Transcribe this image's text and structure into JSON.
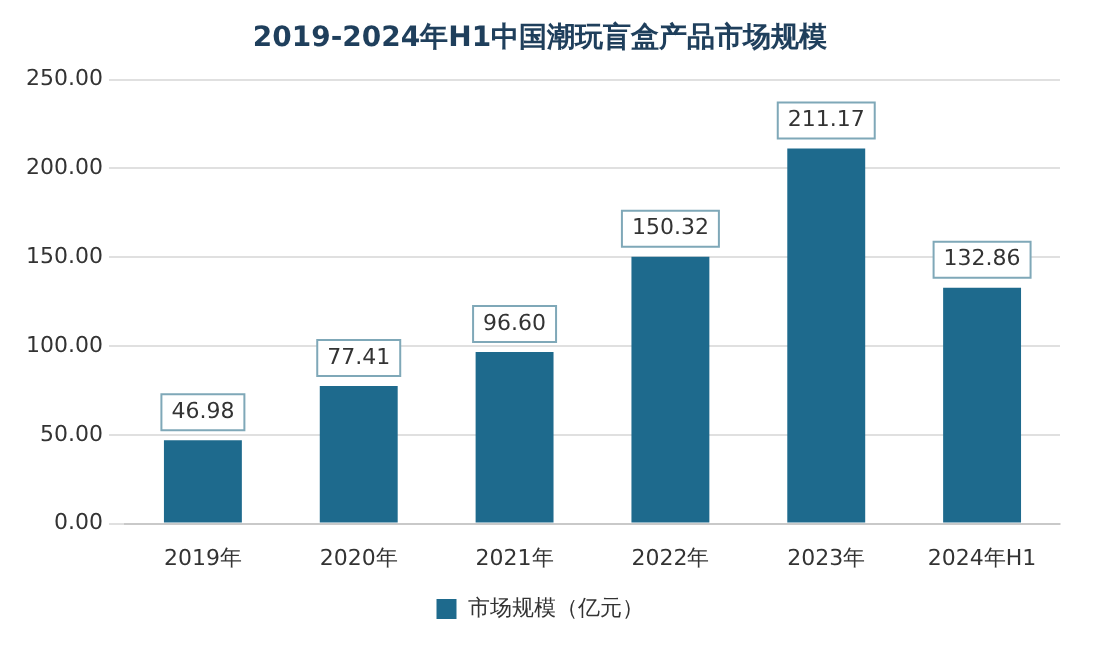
{
  "chart_data": {
    "type": "bar",
    "title": "2019-2024年H1中国潮玩盲盒产品市场规模",
    "categories": [
      "2019年",
      "2020年",
      "2021年",
      "2022年",
      "2023年",
      "2024年H1"
    ],
    "series": [
      {
        "name": "市场规模（亿元）",
        "color": "#1e6a8d",
        "values": [
          46.98,
          77.41,
          96.6,
          150.32,
          211.17,
          132.86
        ]
      }
    ],
    "value_labels": [
      "46.98",
      "77.41",
      "96.60",
      "150.32",
      "211.17",
      "132.86"
    ],
    "ylim": [
      0,
      250
    ],
    "yticks": [
      {
        "value": 0,
        "label": "0.00"
      },
      {
        "value": 50,
        "label": "50.00"
      },
      {
        "value": 100,
        "label": "100.00"
      },
      {
        "value": 150,
        "label": "150.00"
      },
      {
        "value": 200,
        "label": "200.00"
      },
      {
        "value": 250,
        "label": "250.00"
      }
    ],
    "grid": "y",
    "legend": "bottom"
  }
}
